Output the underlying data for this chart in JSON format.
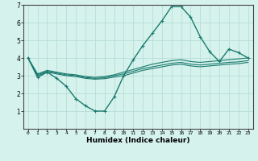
{
  "xlabel": "Humidex (Indice chaleur)",
  "ylabel": "",
  "xlim": [
    -0.5,
    23.5
  ],
  "ylim": [
    0,
    7
  ],
  "xticks": [
    0,
    1,
    2,
    3,
    4,
    5,
    6,
    7,
    8,
    9,
    10,
    11,
    12,
    13,
    14,
    15,
    16,
    17,
    18,
    19,
    20,
    21,
    22,
    23
  ],
  "yticks": [
    1,
    2,
    3,
    4,
    5,
    6,
    7
  ],
  "background_color": "#d5f2ec",
  "grid_color": "#b8ddd8",
  "line_color": "#1a7a6e",
  "line1_x": [
    0,
    1,
    2,
    3,
    4,
    5,
    6,
    7,
    8,
    9,
    10,
    11,
    12,
    13,
    14,
    15,
    16,
    17,
    18,
    19,
    20,
    21,
    22,
    23
  ],
  "line1_y": [
    4.0,
    2.9,
    3.2,
    2.85,
    2.4,
    1.7,
    1.3,
    1.0,
    1.0,
    1.8,
    3.0,
    3.9,
    4.7,
    5.4,
    6.1,
    6.9,
    6.9,
    6.3,
    5.2,
    4.35,
    3.8,
    4.5,
    4.3,
    4.0
  ],
  "line2_x": [
    0,
    1,
    2,
    3,
    4,
    5,
    6,
    7,
    8,
    9,
    10,
    11,
    12,
    13,
    14,
    15,
    16,
    17,
    18,
    19,
    20,
    21,
    22,
    23
  ],
  "line2_y": [
    4.0,
    3.1,
    3.3,
    3.2,
    3.1,
    3.05,
    2.95,
    2.9,
    2.95,
    3.05,
    3.2,
    3.35,
    3.5,
    3.65,
    3.75,
    3.85,
    3.9,
    3.8,
    3.75,
    3.8,
    3.85,
    3.9,
    3.95,
    4.0
  ],
  "line3_x": [
    0,
    1,
    2,
    3,
    4,
    5,
    6,
    7,
    8,
    9,
    10,
    11,
    12,
    13,
    14,
    15,
    16,
    17,
    18,
    19,
    20,
    21,
    22,
    23
  ],
  "line3_y": [
    4.0,
    3.05,
    3.25,
    3.15,
    3.05,
    3.0,
    2.9,
    2.85,
    2.88,
    3.0,
    3.1,
    3.25,
    3.4,
    3.5,
    3.6,
    3.7,
    3.75,
    3.65,
    3.6,
    3.65,
    3.7,
    3.75,
    3.78,
    3.85
  ],
  "line4_x": [
    0,
    1,
    2,
    3,
    4,
    5,
    6,
    7,
    8,
    9,
    10,
    11,
    12,
    13,
    14,
    15,
    16,
    17,
    18,
    19,
    20,
    21,
    22,
    23
  ],
  "line4_y": [
    4.0,
    3.0,
    3.2,
    3.1,
    3.0,
    2.95,
    2.85,
    2.8,
    2.83,
    2.92,
    3.0,
    3.15,
    3.3,
    3.4,
    3.5,
    3.6,
    3.65,
    3.55,
    3.5,
    3.55,
    3.6,
    3.65,
    3.68,
    3.75
  ]
}
